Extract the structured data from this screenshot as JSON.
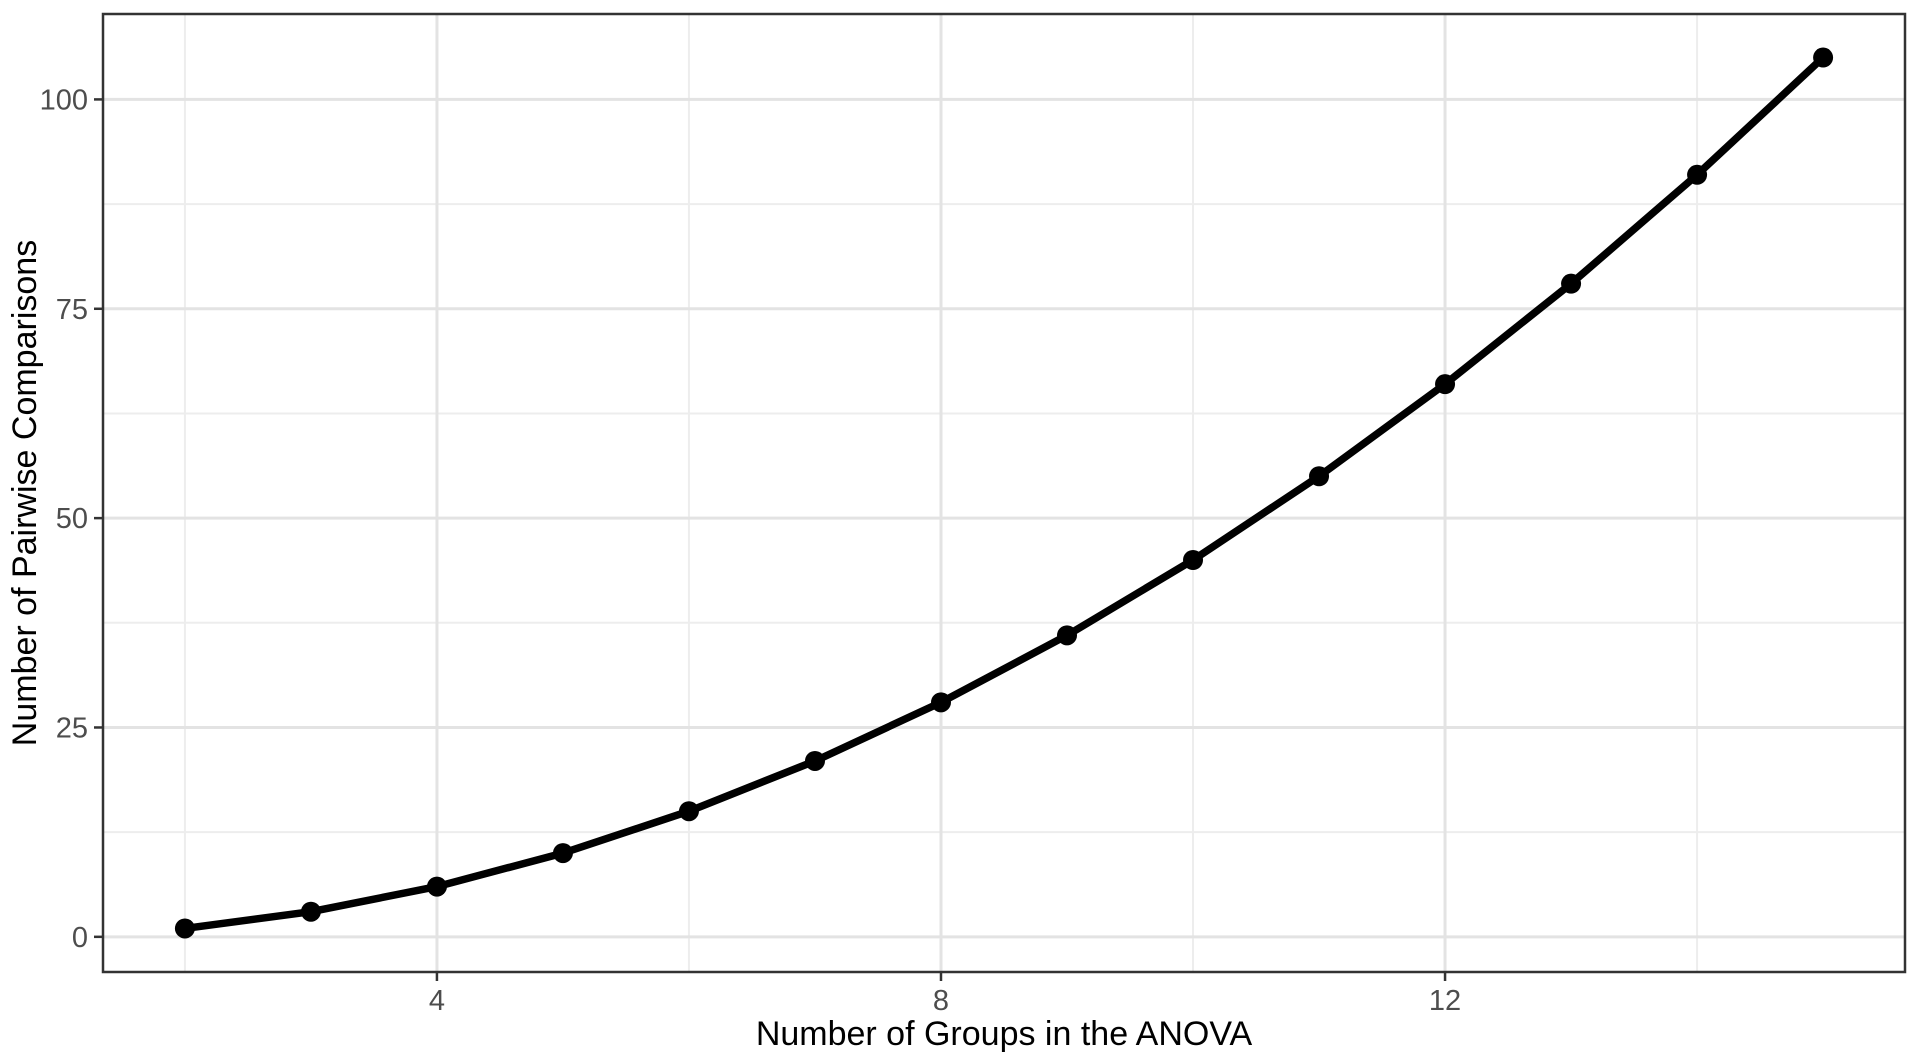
{
  "chart_data": {
    "type": "line",
    "title": "",
    "xlabel": "Number of Groups in the ANOVA",
    "ylabel": "Number of Pairwise Comparisons",
    "x": [
      2,
      3,
      4,
      5,
      6,
      7,
      8,
      9,
      10,
      11,
      12,
      13,
      14,
      15
    ],
    "y": [
      1,
      3,
      6,
      10,
      15,
      21,
      28,
      36,
      45,
      55,
      66,
      78,
      91,
      105
    ],
    "x_tick_labels": [
      "4",
      "8",
      "12"
    ],
    "x_ticks": [
      4,
      8,
      12
    ],
    "x_minor_gridlines": [
      2,
      6,
      10,
      14
    ],
    "y_tick_labels": [
      "0",
      "25",
      "50",
      "75",
      "100"
    ],
    "y_ticks": [
      0,
      25,
      50,
      75,
      100
    ],
    "y_minor_gridlines": [
      12.5,
      37.5,
      62.5,
      87.5
    ],
    "xlim": [
      1.35,
      15.65
    ],
    "ylim": [
      -4.2,
      110.2
    ],
    "grid": "major+minor",
    "legend": "none",
    "marker": "filled-circle",
    "colors": {
      "background": "#ffffff",
      "panel_background": "#ffffff",
      "panel_border": "#333333",
      "grid_major": "#e3e3e3",
      "grid_minor": "#ededed",
      "line": "#000000",
      "point": "#000000",
      "tick_mark": "#333333",
      "tick_label": "#4d4d4d",
      "axis_title": "#000000"
    }
  }
}
